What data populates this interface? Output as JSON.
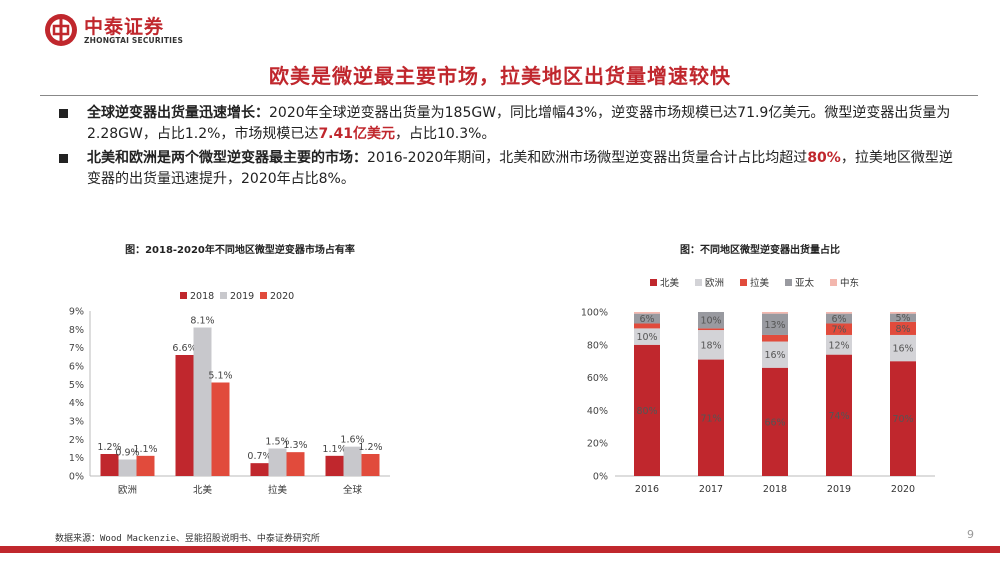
{
  "brand": {
    "name_cn": "中泰证券",
    "name_en": "ZHONGTAI SECURITIES",
    "colors": {
      "brand_red": "#c0272d",
      "gray": "#c8c8cc",
      "mid_red": "#e14b3c",
      "slate": "#999aa0",
      "pink": "#f3b7ae"
    }
  },
  "title": "欧美是微逆最主要市场，拉美地区出货量增速较快",
  "bullets": [
    {
      "head": "全球逆变器出货量迅速增长：",
      "seg1": "2020年全球逆变器出货量为185GW，同比增幅43%，逆变器市场规模已达71.9亿美元。微型逆变器出货量为2.28GW，占比1.2%，市场规模已达",
      "highlight": "7.41亿美元",
      "seg2": "，占比10.3%。"
    },
    {
      "head": "北美和欧洲是两个微型逆变器最主要的市场：",
      "seg1": "2016-2020年期间，北美和欧洲市场微型逆变器出货量合计占比均超过",
      "highlight": "80%",
      "seg2": "，拉美地区微型逆变器的出货量迅速提升，2020年占比8%。"
    }
  ],
  "chart_data": [
    {
      "type": "bar",
      "title": "图：2018-2020年不同地区微型逆变器市场占有率",
      "categories": [
        "欧洲",
        "北美",
        "拉美",
        "全球"
      ],
      "series": [
        {
          "name": "2018",
          "values": [
            1.2,
            6.6,
            0.7,
            1.1
          ],
          "labels": [
            "1.2%",
            "6.6%",
            "0.7%",
            "1.1%"
          ],
          "color": "#c0272d"
        },
        {
          "name": "2019",
          "values": [
            0.9,
            8.1,
            1.5,
            1.6
          ],
          "labels": [
            "0.9%",
            "8.1%",
            "1.5%",
            "1.6%"
          ],
          "color": "#c8c8cc"
        },
        {
          "name": "2020",
          "values": [
            1.1,
            5.1,
            1.3,
            1.2
          ],
          "labels": [
            "1.1%",
            "5.1%",
            "1.3%",
            "1.2%"
          ],
          "color": "#e14b3c"
        }
      ],
      "y_ticks": [
        "0%",
        "1%",
        "2%",
        "3%",
        "4%",
        "5%",
        "6%",
        "7%",
        "8%",
        "9%"
      ],
      "ylim": [
        0,
        9
      ],
      "legend_position": "top",
      "grid": false
    },
    {
      "type": "bar",
      "stacked": true,
      "title": "图：不同地区微型逆变器出货量占比",
      "categories": [
        "2016",
        "2017",
        "2018",
        "2019",
        "2020"
      ],
      "series": [
        {
          "name": "北美",
          "values": [
            80,
            71,
            66,
            74,
            70
          ],
          "labels": [
            "80%",
            "71%",
            "66%",
            "74%",
            "70%"
          ],
          "color": "#c0272d"
        },
        {
          "name": "欧洲",
          "values": [
            10,
            18,
            16,
            12,
            16
          ],
          "labels": [
            "10%",
            "18%",
            "16%",
            "12%",
            "16%"
          ],
          "color": "#d3d3d7"
        },
        {
          "name": "拉美",
          "values": [
            3,
            1,
            4,
            7,
            8
          ],
          "labels": [
            "",
            "",
            "",
            "7%",
            "8%"
          ],
          "color": "#e14b3c"
        },
        {
          "name": "亚太",
          "values": [
            6,
            10,
            13,
            6,
            5
          ],
          "labels": [
            "6%",
            "10%",
            "13%",
            "6%",
            "5%"
          ],
          "color": "#999aa0"
        },
        {
          "name": "中东",
          "values": [
            1,
            0,
            1,
            1,
            1
          ],
          "labels": [
            "",
            "",
            "",
            "",
            ""
          ],
          "color": "#f3b7ae"
        }
      ],
      "y_ticks": [
        "0%",
        "20%",
        "40%",
        "60%",
        "80%",
        "100%"
      ],
      "ylim": [
        0,
        100
      ],
      "legend_position": "top",
      "grid": false
    }
  ],
  "footer": {
    "source": "数据来源：Wood Mackenzie、昱能招股说明书、中泰证券研究所",
    "page": "9"
  }
}
